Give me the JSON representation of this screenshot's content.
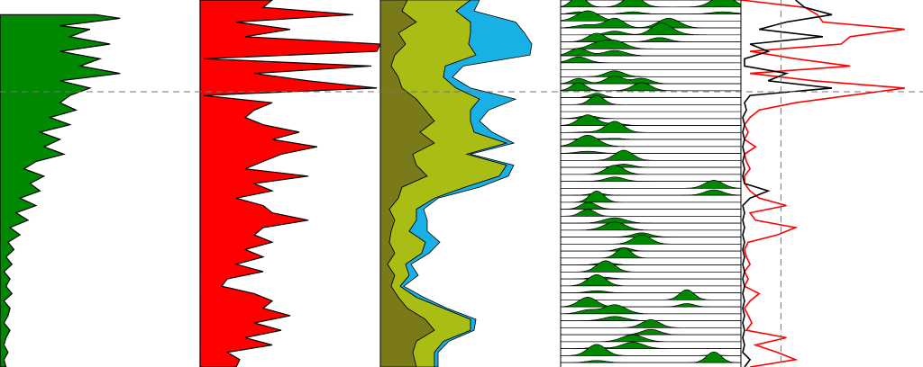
{
  "chart_data": {
    "type": "area",
    "title": "",
    "xlabel": "",
    "ylabel": "",
    "y_direction": "depth-down",
    "ylim": [
      0,
      100
    ],
    "grid": false,
    "legend": "none",
    "crosshair": {
      "y": 25,
      "x_in_track5": 0.22
    },
    "tracks": [
      {
        "name": "",
        "kind": "area",
        "fill": "#008800",
        "stroke": "#000000",
        "y": [
          4,
          5,
          7,
          8,
          10,
          12,
          14,
          16,
          18,
          20,
          22,
          24,
          26,
          28,
          30,
          32,
          34,
          36,
          38,
          40,
          42,
          44,
          46,
          48,
          50,
          52,
          54,
          56,
          58,
          60,
          62,
          64,
          66,
          68,
          70,
          72,
          74,
          76,
          78,
          80,
          82,
          84,
          86,
          88,
          90,
          92,
          94,
          96,
          98,
          100
        ],
        "values": [
          0.48,
          0.6,
          0.3,
          0.45,
          0.35,
          0.55,
          0.3,
          0.5,
          0.4,
          0.6,
          0.3,
          0.45,
          0.35,
          0.3,
          0.38,
          0.25,
          0.35,
          0.2,
          0.3,
          0.22,
          0.32,
          0.18,
          0.12,
          0.22,
          0.15,
          0.2,
          0.1,
          0.18,
          0.08,
          0.14,
          0.05,
          0.1,
          0.04,
          0.07,
          0.03,
          0.06,
          0.02,
          0.05,
          0.03,
          0.06,
          0.02,
          0.05,
          0.04,
          0.02,
          0.05,
          0.03,
          0.02,
          0.04,
          0.02,
          0.03
        ]
      },
      {
        "name": "",
        "kind": "area",
        "fill": "#ff0000",
        "stroke": "#000000",
        "y": [
          0,
          2,
          4,
          6,
          8,
          10,
          12,
          14,
          16,
          18,
          20,
          22,
          24,
          26,
          28,
          30,
          32,
          34,
          36,
          38,
          40,
          42,
          44,
          46,
          48,
          50,
          52,
          54,
          56,
          58,
          60,
          62,
          64,
          66,
          68,
          70,
          72,
          74,
          76,
          78,
          80,
          82,
          84,
          86,
          88,
          90,
          92,
          94,
          96,
          98,
          100
        ],
        "values": [
          0.4,
          0.35,
          0.85,
          0.2,
          0.5,
          0.25,
          1.0,
          0.98,
          0.02,
          0.95,
          0.3,
          0.6,
          0.98,
          0.02,
          0.4,
          0.3,
          0.25,
          0.35,
          0.55,
          0.4,
          0.65,
          0.45,
          0.35,
          0.25,
          0.6,
          0.3,
          0.4,
          0.2,
          0.35,
          0.4,
          0.6,
          0.35,
          0.3,
          0.4,
          0.25,
          0.35,
          0.2,
          0.35,
          0.15,
          0.12,
          0.3,
          0.4,
          0.35,
          0.5,
          0.3,
          0.45,
          0.25,
          0.4,
          0.15,
          0.22,
          0.2
        ]
      },
      {
        "name": "",
        "kind": "stacked-area",
        "fills": [
          "#7a7a18",
          "#aabd14",
          "#19b0e6"
        ],
        "stroke": "#000000",
        "y": [
          0,
          3,
          6,
          9,
          12,
          15,
          18,
          21,
          24,
          27,
          30,
          33,
          36,
          39,
          42,
          45,
          48,
          51,
          54,
          57,
          60,
          63,
          66,
          69,
          72,
          75,
          78,
          81,
          84,
          87,
          90,
          93,
          96,
          100
        ],
        "series": [
          {
            "name": "",
            "values": [
              0.15,
              0.12,
              0.2,
              0.1,
              0.14,
              0.08,
              0.06,
              0.1,
              0.12,
              0.2,
              0.25,
              0.3,
              0.22,
              0.3,
              0.18,
              0.2,
              0.26,
              0.12,
              0.1,
              0.05,
              0.08,
              0.06,
              0.05,
              0.08,
              0.04,
              0.08,
              0.06,
              0.1,
              0.15,
              0.25,
              0.3,
              0.2,
              0.18,
              0.2
            ]
          },
          {
            "name": "",
            "values": [
              0.35,
              0.3,
              0.3,
              0.4,
              0.35,
              0.45,
              0.3,
              0.25,
              0.3,
              0.35,
              0.25,
              0.2,
              0.3,
              0.4,
              0.3,
              0.5,
              0.4,
              0.35,
              0.2,
              0.15,
              0.12,
              0.1,
              0.2,
              0.15,
              0.1,
              0.08,
              0.05,
              0.1,
              0.2,
              0.25,
              0.2,
              0.15,
              0.12,
              0.1
            ]
          },
          {
            "name": "",
            "values": [
              0.05,
              0.1,
              0.25,
              0.3,
              0.35,
              0.3,
              0.1,
              0.05,
              0.08,
              0.2,
              0.1,
              0.05,
              0.1,
              0.04,
              0.02,
              0.04,
              0.05,
              0.08,
              0.02,
              0.04,
              0.06,
              0.1,
              0.08,
              0.04,
              0.03,
              0.05,
              0.02,
              0.04,
              0.02,
              0.03,
              0.02,
              0.03,
              0.02,
              0.02
            ]
          }
        ]
      },
      {
        "name": "",
        "kind": "wiggle-stack",
        "fill": "#008800",
        "stroke": "#000000",
        "row_spacing": 1.9,
        "peaks": [
          [
            2,
            0.1,
            0.04
          ],
          [
            2,
            0.4,
            0.05
          ],
          [
            2,
            0.9,
            0.06
          ],
          [
            6,
            0.15,
            0.06
          ],
          [
            8,
            0.3,
            0.05
          ],
          [
            8,
            0.6,
            0.06
          ],
          [
            10,
            0.55,
            0.05
          ],
          [
            12,
            0.2,
            0.05
          ],
          [
            14,
            0.3,
            0.06
          ],
          [
            16,
            0.1,
            0.05
          ],
          [
            22,
            0.3,
            0.05
          ],
          [
            24,
            0.45,
            0.05
          ],
          [
            24,
            0.1,
            0.04
          ],
          [
            28,
            0.2,
            0.04
          ],
          [
            34,
            0.15,
            0.05
          ],
          [
            36,
            0.3,
            0.05
          ],
          [
            40,
            0.15,
            0.06
          ],
          [
            44,
            0.35,
            0.05
          ],
          [
            48,
            0.3,
            0.05
          ],
          [
            52,
            0.85,
            0.05
          ],
          [
            55,
            0.2,
            0.04
          ],
          [
            58,
            0.15,
            0.04
          ],
          [
            62,
            0.3,
            0.06
          ],
          [
            66,
            0.45,
            0.05
          ],
          [
            70,
            0.35,
            0.04
          ],
          [
            74,
            0.25,
            0.05
          ],
          [
            78,
            0.2,
            0.05
          ],
          [
            82,
            0.7,
            0.04
          ],
          [
            84,
            0.15,
            0.05
          ],
          [
            86,
            0.3,
            0.06
          ],
          [
            90,
            0.5,
            0.05
          ],
          [
            94,
            0.4,
            0.06
          ],
          [
            97,
            0.2,
            0.05
          ],
          [
            99,
            0.85,
            0.04
          ]
        ]
      },
      {
        "name": "",
        "kind": "lines",
        "series": [
          {
            "name": "",
            "color": "#ff0000",
            "y": [
              0,
              2,
              4,
              6,
              8,
              10,
              12,
              14,
              16,
              18,
              20,
              22,
              24,
              26,
              28,
              30,
              32,
              34,
              36,
              38,
              40,
              42,
              44,
              46,
              48,
              50,
              52,
              54,
              56,
              58,
              60,
              62,
              64,
              66,
              68,
              70,
              72,
              74,
              76,
              78,
              80,
              82,
              84,
              86,
              88,
              90,
              92,
              94,
              96,
              98,
              100
            ],
            "values": [
              0.0,
              0.35,
              0.42,
              0.45,
              0.9,
              0.6,
              0.55,
              0.05,
              0.3,
              0.6,
              0.05,
              0.4,
              0.9,
              0.6,
              0.3,
              0.1,
              0.05,
              0.02,
              0.04,
              0.02,
              0.08,
              0.02,
              0.03,
              0.05,
              0.02,
              0.02,
              0.05,
              0.1,
              0.25,
              0.05,
              0.08,
              0.3,
              0.2,
              0.04,
              0.02,
              0.03,
              0.05,
              0.02,
              0.04,
              0.02,
              0.1,
              0.05,
              0.02,
              0.04,
              0.06,
              0.03,
              0.25,
              0.08,
              0.2,
              0.3,
              0.05
            ]
          },
          {
            "name": "",
            "color": "#000000",
            "y": [
              0,
              2,
              4,
              6,
              8,
              10,
              12,
              14,
              16,
              18,
              20,
              22,
              24,
              26,
              28,
              30,
              32,
              34,
              36,
              38,
              40,
              42,
              44,
              46,
              48,
              50,
              52,
              54,
              56,
              58,
              60,
              62,
              64,
              66,
              68,
              70,
              72,
              74,
              76,
              78,
              80,
              82,
              84,
              86,
              88,
              90,
              92,
              94,
              96,
              98,
              100
            ],
            "values": [
              0.3,
              0.35,
              0.5,
              0.25,
              0.1,
              0.45,
              0.05,
              0.15,
              0.02,
              0.02,
              0.25,
              0.15,
              0.5,
              0.05,
              0.02,
              0.03,
              0.01,
              0.02,
              0.01,
              0.02,
              0.01,
              0.02,
              0.01,
              0.02,
              0.01,
              0.02,
              0.15,
              0.05,
              0.01,
              0.02,
              0.01,
              0.02,
              0.01,
              0.02,
              0.01,
              0.02,
              0.01,
              0.02,
              0.01,
              0.02,
              0.01,
              0.02,
              0.01,
              0.02,
              0.01,
              0.02,
              0.01,
              0.02,
              0.01,
              0.05,
              0.02
            ]
          }
        ]
      }
    ]
  }
}
